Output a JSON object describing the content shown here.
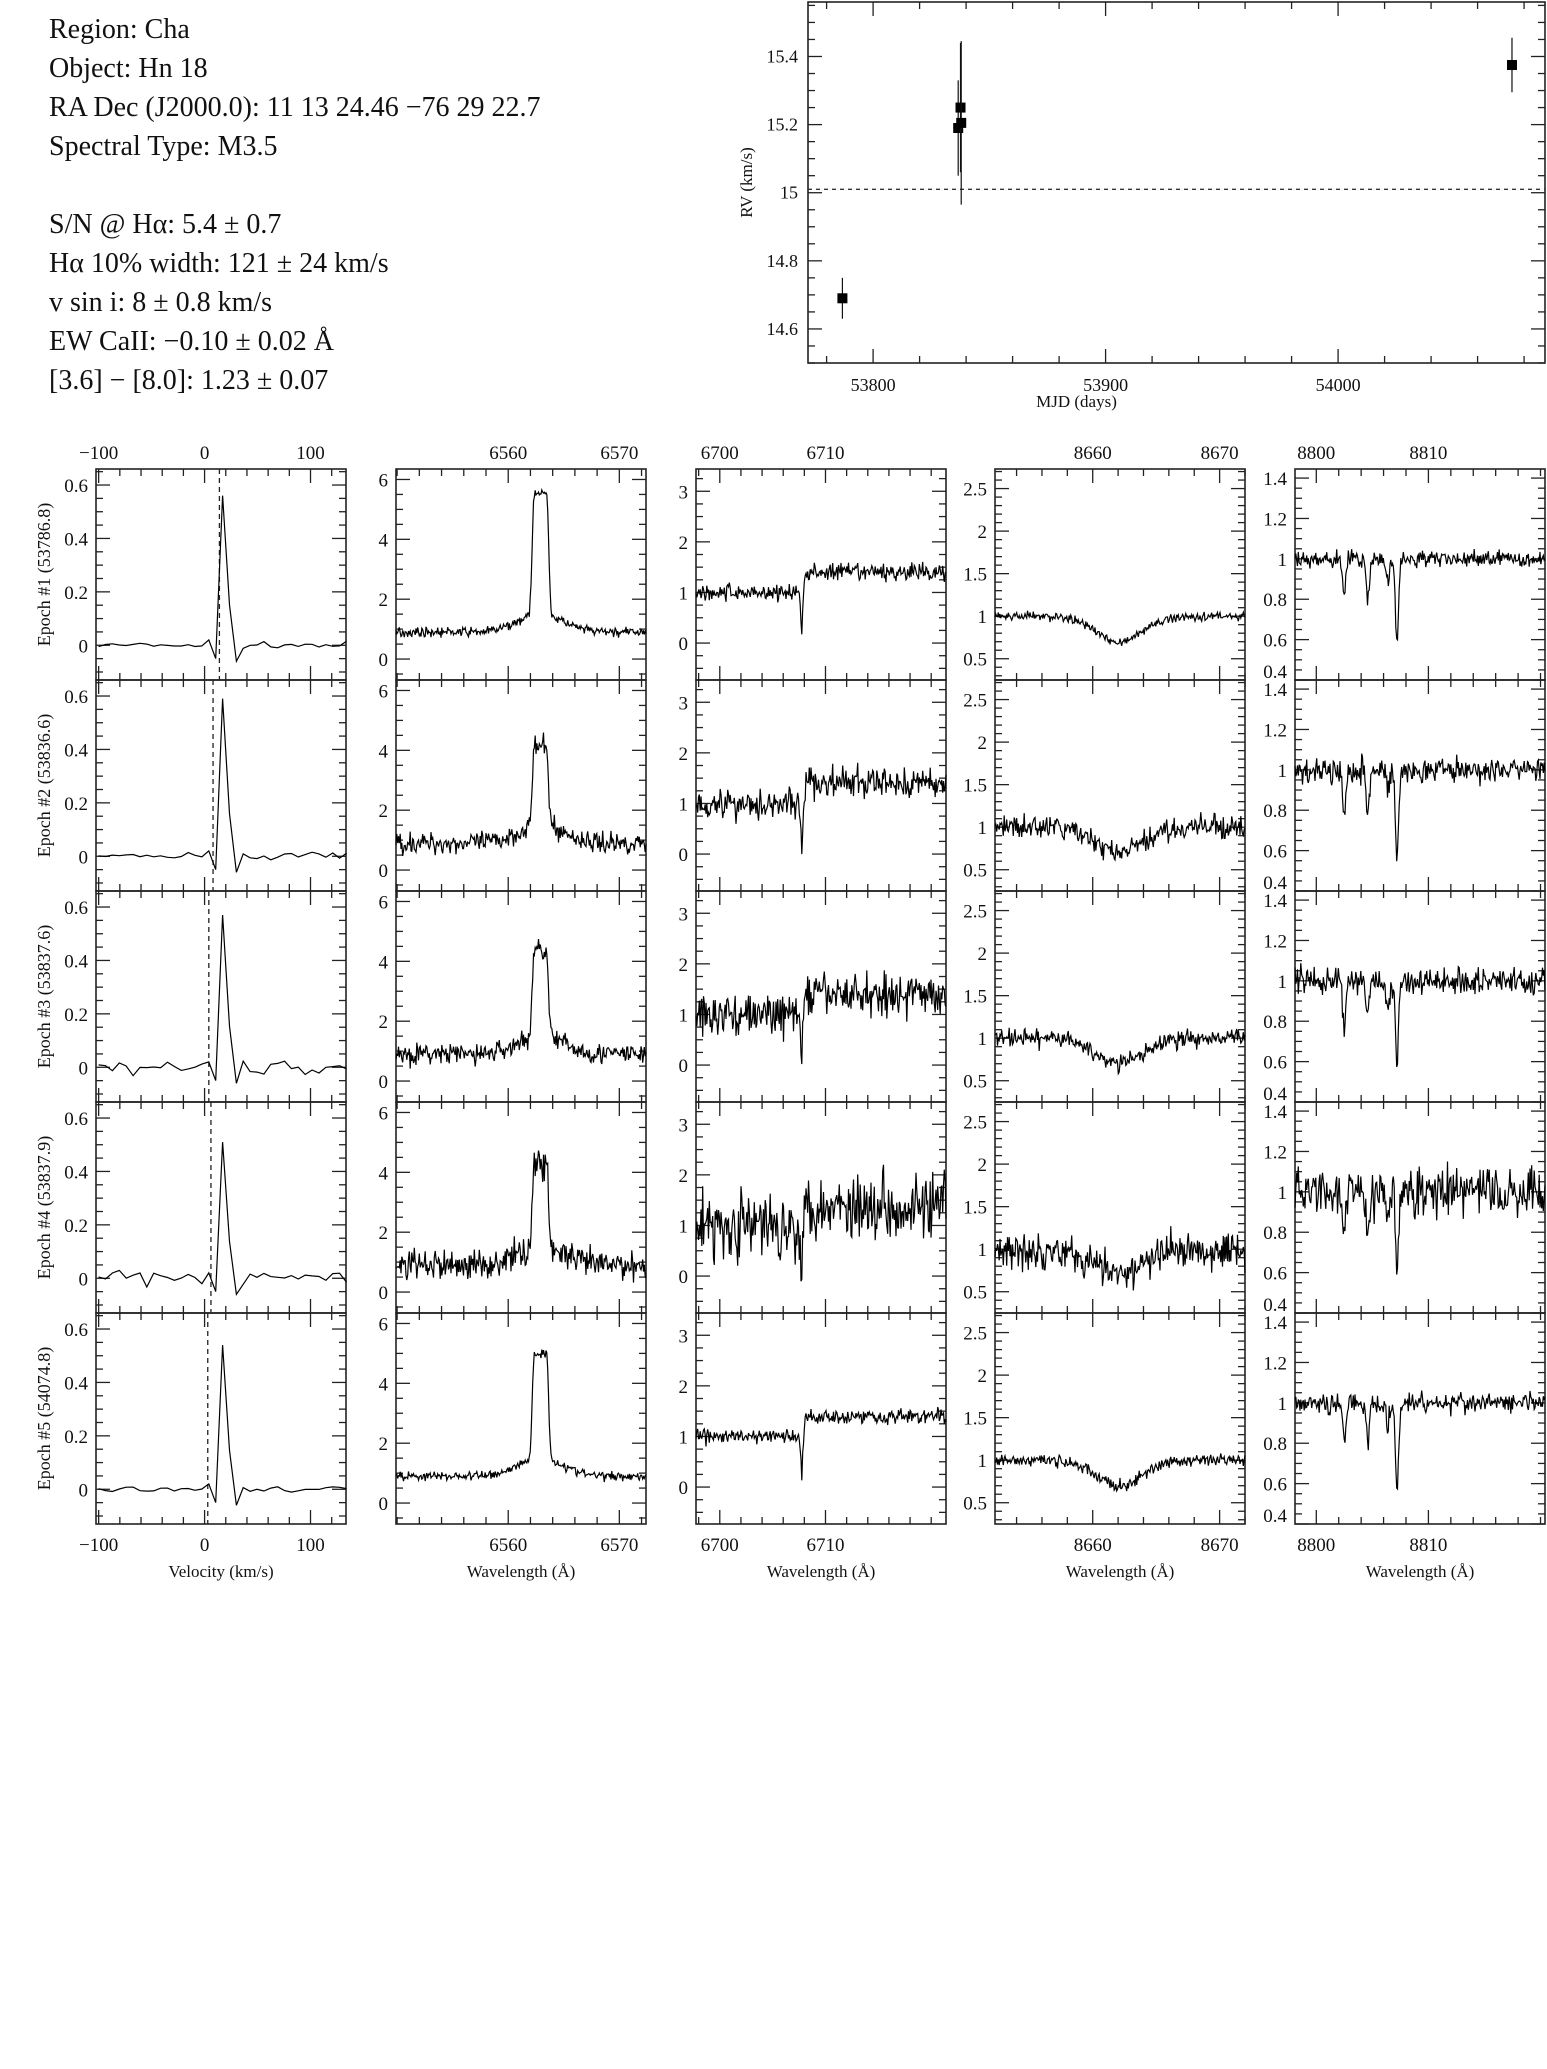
{
  "info": {
    "lines1": [
      "Region: Cha",
      "Object: Hn 18",
      "RA Dec (J2000.0): 11 13 24.46 −76 29 22.7",
      "Spectral Type: M3.5"
    ],
    "lines2": [
      "S/N @ Hα: 5.4 ± 0.7",
      "Hα 10% width: 121 ± 24 km/s",
      "v sin i: 8 ± 0.8 km/s",
      "EW CaII: −0.10 ± 0.02 Å",
      "[3.6] − [8.0]: 1.23 ± 0.07"
    ]
  },
  "chart_data": [
    {
      "type": "scatter",
      "xlabel": "MJD (days)",
      "ylabel": "RV (km/s)",
      "xlim": [
        53772,
        54089
      ],
      "ylim": [
        14.5,
        15.56
      ],
      "xticks": [
        "53800",
        "53900",
        "54000"
      ],
      "yticks": [
        "14.6",
        "14.8",
        "15",
        "15.2",
        "15.4"
      ],
      "mean_rv_dashed": 15.01,
      "points": [
        {
          "x": 53786.8,
          "y": 14.69,
          "err": 0.06
        },
        {
          "x": 53836.6,
          "y": 15.19,
          "err": 0.14
        },
        {
          "x": 53837.6,
          "y": 15.25,
          "err": 0.19
        },
        {
          "x": 53837.9,
          "y": 15.205,
          "err": 0.24
        },
        {
          "x": 54074.8,
          "y": 15.375,
          "err": 0.08
        }
      ]
    },
    {
      "type": "line",
      "epochs": [
        "Epoch #1 (53786.8)",
        "Epoch #2 (53836.6)",
        "Epoch #3 (53837.6)",
        "Epoch #4 (53837.9)",
        "Epoch #5 (54074.8)"
      ],
      "columns": [
        {
          "xlabel": "Velocity (km/s)",
          "xlim": [
            -102.5,
            133.5
          ],
          "ylim": [
            -0.13,
            0.66
          ],
          "xticks": [
            "-100",
            "0",
            "100"
          ],
          "xminor": 20,
          "yticks": [
            "0",
            "0.2",
            "0.4",
            "0.6"
          ],
          "yminor": 0.05,
          "ccf_peak": [
            0.56,
            0.59,
            0.57,
            0.51,
            0.54
          ],
          "ccf_peak_v": 15,
          "dashed_v": [
            14,
            8,
            4,
            6,
            3
          ],
          "noise": [
            0.01,
            0.012,
            0.025,
            0.025,
            0.01
          ]
        },
        {
          "xlabel": "Wavelength (Å)",
          "xlim": [
            6549.9,
            6572.4
          ],
          "ylim": [
            -0.7,
            6.35
          ],
          "xticks": [
            "6560",
            "6570"
          ],
          "xminor": 2,
          "yticks": [
            "0",
            "2",
            "4",
            "6"
          ],
          "yminor": 0.5,
          "continuum": 0.9,
          "line_center": 6562.9,
          "peak": [
            5.6,
            4.1,
            4.4,
            4.3,
            5.0
          ],
          "noise": [
            0.15,
            0.35,
            0.35,
            0.5,
            0.15
          ]
        },
        {
          "xlabel": "Wavelength (Å)",
          "xlim": [
            6697.75,
            6721.4
          ],
          "ylim": [
            -0.73,
            3.44
          ],
          "xticks": [
            "6700",
            "6710"
          ],
          "xminor": 2,
          "yticks": [
            "0",
            "1",
            "2",
            "3"
          ],
          "yminor": 0.25,
          "continuum": [
            1.0,
            1.4
          ],
          "line_center": 6707.8,
          "depth": 0.85,
          "noise": [
            0.17,
            0.32,
            0.4,
            0.65,
            0.15
          ]
        },
        {
          "xlabel": "Wavelength (Å)",
          "xlim": [
            8652.3,
            8672.0
          ],
          "ylim": [
            0.25,
            2.73
          ],
          "xticks": [
            "8660",
            "8670"
          ],
          "xminor": 2,
          "yticks": [
            "0.5",
            "1",
            "1.5",
            "2",
            "2.5"
          ],
          "yminor": 0.1,
          "continuum": 1.0,
          "line_center": 8662.1,
          "depth": 0.3,
          "noise": [
            0.05,
            0.13,
            0.1,
            0.22,
            0.07
          ]
        },
        {
          "xlabel": "Wavelength (Å)",
          "xlim": [
            8798.1,
            8820.4
          ],
          "ylim": [
            0.4,
            1.445
          ],
          "xticks": [
            "8800",
            "8810"
          ],
          "xminor": 2,
          "yticks": [
            "0.4",
            "0.6",
            "0.8",
            "1",
            "1.2",
            "1.4"
          ],
          "yminor": 0.05,
          "continuum": 1.0,
          "lines": [
            {
              "center": 8802.5,
              "depth": 0.2
            },
            {
              "center": 8804.6,
              "depth": 0.2
            },
            {
              "center": 8806.4,
              "depth": 0.12
            },
            {
              "center": 8807.2,
              "depth": 0.42
            }
          ],
          "noise": [
            0.04,
            0.06,
            0.07,
            0.12,
            0.05
          ]
        }
      ]
    }
  ]
}
